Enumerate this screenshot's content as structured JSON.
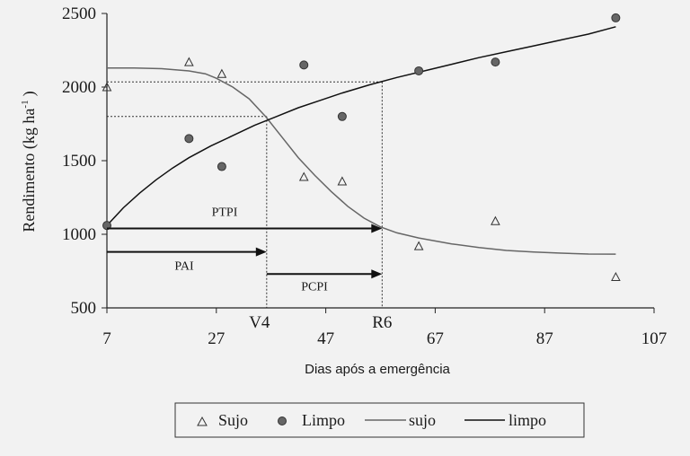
{
  "chart_data": {
    "type": "scatter",
    "xlabel": "Dias após a emergência",
    "ylabel": "Rendimento (kg ha",
    "ylabel_sup": "-1",
    "ylabel_close": ")",
    "xlim": [
      7,
      107
    ],
    "ylim": [
      500,
      2500
    ],
    "x_ticks": [
      7,
      27,
      47,
      67,
      87,
      107
    ],
    "y_ticks": [
      500,
      1000,
      1500,
      2000,
      2500
    ],
    "series": [
      {
        "name": "Sujo",
        "kind": "points",
        "marker": "triangle",
        "x": [
          7,
          22,
          28,
          43,
          50,
          64,
          78,
          100
        ],
        "y": [
          2000,
          2170,
          2090,
          1390,
          1360,
          920,
          1090,
          710
        ]
      },
      {
        "name": "Limpo",
        "kind": "points",
        "marker": "circle",
        "x": [
          7,
          22,
          28,
          43,
          50,
          64,
          78,
          100
        ],
        "y": [
          1060,
          1650,
          1460,
          2150,
          1800,
          2110,
          2170,
          2470
        ]
      },
      {
        "name": "sujo",
        "kind": "line",
        "color": "#666666",
        "x": [
          7,
          12,
          17,
          22,
          25,
          27,
          30,
          33,
          36,
          39,
          42,
          45,
          48,
          51,
          54,
          57,
          60,
          64,
          70,
          75,
          80,
          85,
          90,
          95,
          100
        ],
        "y": [
          2130,
          2130,
          2125,
          2110,
          2090,
          2060,
          2000,
          1920,
          1800,
          1660,
          1520,
          1400,
          1290,
          1190,
          1110,
          1050,
          1010,
          975,
          935,
          910,
          890,
          880,
          872,
          866,
          865
        ]
      },
      {
        "name": "limpo",
        "kind": "line",
        "color": "#111111",
        "x": [
          7,
          10,
          13,
          16,
          19,
          22,
          26,
          30,
          34,
          38,
          42,
          46,
          50,
          55,
          60,
          65,
          70,
          75,
          80,
          85,
          90,
          95,
          100
        ],
        "y": [
          1060,
          1180,
          1280,
          1370,
          1450,
          1520,
          1600,
          1670,
          1740,
          1800,
          1860,
          1910,
          1960,
          2015,
          2065,
          2110,
          2155,
          2200,
          2240,
          2280,
          2320,
          2360,
          2410
        ]
      }
    ],
    "reference_lines": {
      "v4_x": 36.2,
      "r6_x": 57.3,
      "y_v4": 1800,
      "y_r6": 2035
    },
    "annotations": {
      "v4": "V4",
      "r6": "R6",
      "ptpi": "PTPI",
      "pai": "PAI",
      "pcpi": "PCPI"
    },
    "arrows": [
      {
        "label": "PTPI",
        "x1": 7,
        "x2": 57.3,
        "y": 1040
      },
      {
        "label": "PAI",
        "x1": 7,
        "x2": 36.2,
        "y": 880
      },
      {
        "label": "PCPI",
        "x1": 36.2,
        "x2": 57.3,
        "y": 730
      }
    ],
    "legend": {
      "placement": "bottom",
      "items": [
        {
          "label": "Sujo",
          "symbol": "triangle"
        },
        {
          "label": "Limpo",
          "symbol": "circle"
        },
        {
          "label": "sujo",
          "symbol": "line-gray"
        },
        {
          "label": "limpo",
          "symbol": "line-black"
        }
      ]
    }
  }
}
